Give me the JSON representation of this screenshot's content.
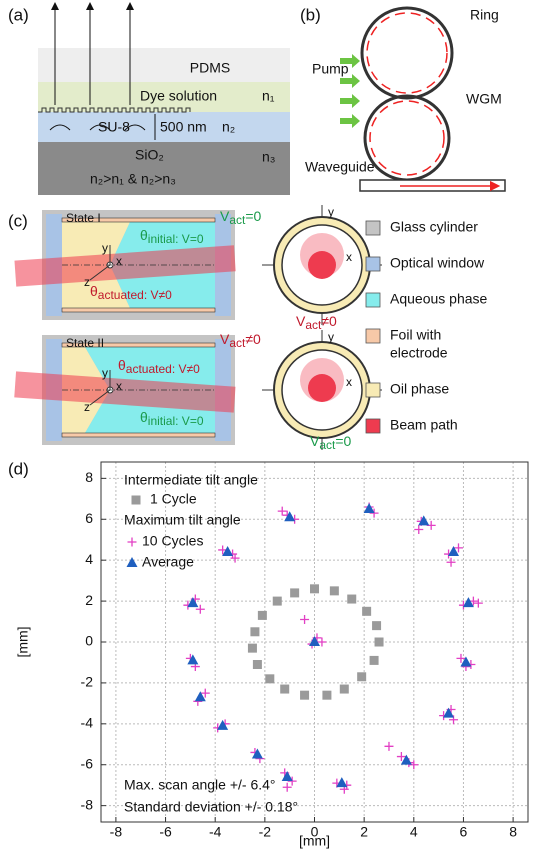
{
  "panels": {
    "a": {
      "label": "(a)",
      "layers": [
        "PDMS",
        "Dye solution",
        "SU-8",
        "SiO₂"
      ],
      "indices": [
        "n₁",
        "n₂",
        "n₃"
      ],
      "thickness": "500 nm",
      "condition": "n₂>n₁ & n₂>n₃"
    },
    "b": {
      "label": "(b)",
      "ring": "Ring",
      "pump": "Pump",
      "wgm": "WGM",
      "waveguide": "Waveguide"
    },
    "c": {
      "label": "(c)",
      "states": [
        "State I",
        "State II"
      ],
      "angles": {
        "initial": {
          "symbol": "θ",
          "sub": "initial: V=0"
        },
        "actuated": {
          "symbol": "θ",
          "sub": "actuated: V≠0"
        }
      },
      "voltages": {
        "zero": {
          "symbol": "V",
          "sub": "act",
          "rest": "=0"
        },
        "nonzero": {
          "symbol": "V",
          "sub": "act",
          "rest": "≠0"
        }
      },
      "axes": [
        "x",
        "y",
        "z"
      ],
      "legend": [
        {
          "lines": [
            "Glass cylinder"
          ],
          "color": "#c4c4c4"
        },
        {
          "lines": [
            "Optical window"
          ],
          "color": "#a8c3e6"
        },
        {
          "lines": [
            "Aqueous phase"
          ],
          "color": "#86ecec"
        },
        {
          "lines": [
            "Foil with",
            "electrode"
          ],
          "color": "#f7c9a8"
        },
        {
          "lines": [
            "Oil phase"
          ],
          "color": "#f8ebb5"
        },
        {
          "lines": [
            "Beam path"
          ],
          "color": "#ee3b4f"
        }
      ]
    },
    "d": {
      "label": "(d)"
    }
  },
  "chart_data": {
    "type": "scatter",
    "xlabel": "[mm]",
    "ylabel": "[mm]",
    "xlim": [
      -8.6,
      8.6
    ],
    "ylim": [
      -8.8,
      8.8
    ],
    "xticks": [
      -8,
      -6,
      -4,
      -2,
      0,
      2,
      4,
      6,
      8
    ],
    "yticks": [
      -8,
      -6,
      -4,
      -2,
      0,
      2,
      4,
      6,
      8
    ],
    "grid": true,
    "legend_titles": [
      "Intermediate tilt angle",
      "Maximum tilt angle"
    ],
    "annotations": [
      "Max. scan angle +/- 6.4°",
      "Standard deviation +/- 0.18°"
    ],
    "series": [
      {
        "name": "1 Cycle",
        "color": "#9a9a9a",
        "marker": "square",
        "x": [
          0.0,
          0.8,
          1.5,
          2.1,
          2.5,
          2.6,
          2.4,
          1.9,
          1.2,
          0.5,
          -0.4,
          -1.2,
          -1.8,
          -2.3,
          -2.5,
          -2.4,
          -2.1,
          -1.5,
          -0.8
        ],
        "y": [
          2.6,
          2.5,
          2.1,
          1.5,
          0.8,
          0.0,
          -0.9,
          -1.7,
          -2.3,
          -2.6,
          -2.6,
          -2.3,
          -1.8,
          -1.1,
          -0.3,
          0.5,
          1.3,
          2.0,
          2.4
        ]
      },
      {
        "name": "10 Cycles",
        "color": "#e23fc4",
        "marker": "plus",
        "x": [
          0.1,
          -0.1,
          0.3,
          2.4,
          2.2,
          4.3,
          4.7,
          4.2,
          5.4,
          5.8,
          5.5,
          6.4,
          6.6,
          6.0,
          6.3,
          5.9,
          6.1,
          5.5,
          5.2,
          5.6,
          3.8,
          3.5,
          4.0,
          1.3,
          0.9,
          1.2,
          -1.2,
          -0.9,
          -1.1,
          -2.4,
          -2.2,
          -3.6,
          -3.9,
          -4.7,
          -4.4,
          -5.0,
          -4.8,
          -4.8,
          -5.1,
          -4.6,
          -3.3,
          -3.7,
          -3.2,
          -1.1,
          -0.8,
          -1.3,
          -0.4,
          3.0
        ],
        "y": [
          0.2,
          -0.1,
          0.0,
          6.3,
          6.6,
          5.9,
          5.7,
          5.5,
          4.3,
          4.6,
          3.9,
          2.0,
          1.9,
          1.8,
          -1.1,
          -0.8,
          -1.2,
          -3.3,
          -3.6,
          -3.8,
          -5.9,
          -5.6,
          -6.0,
          -7.0,
          -6.9,
          -7.2,
          -6.4,
          -6.8,
          -7.1,
          -5.4,
          -5.7,
          -4.0,
          -4.2,
          -2.9,
          -2.5,
          -0.8,
          -1.2,
          2.1,
          1.8,
          1.6,
          4.3,
          4.5,
          4.1,
          6.2,
          6.0,
          6.4,
          1.1,
          -5.1
        ]
      },
      {
        "name": "Average",
        "color": "#1f5fbf",
        "marker": "triangle",
        "x": [
          0.0,
          2.2,
          4.4,
          5.6,
          6.2,
          6.1,
          5.4,
          3.7,
          1.1,
          -1.1,
          -2.3,
          -3.7,
          -4.6,
          -4.9,
          -4.9,
          -3.5,
          -1.0
        ],
        "y": [
          0.0,
          6.5,
          5.9,
          4.4,
          1.9,
          -1.0,
          -3.5,
          -5.8,
          -6.9,
          -6.6,
          -5.5,
          -4.1,
          -2.7,
          -0.9,
          1.9,
          4.4,
          6.1
        ]
      }
    ]
  }
}
